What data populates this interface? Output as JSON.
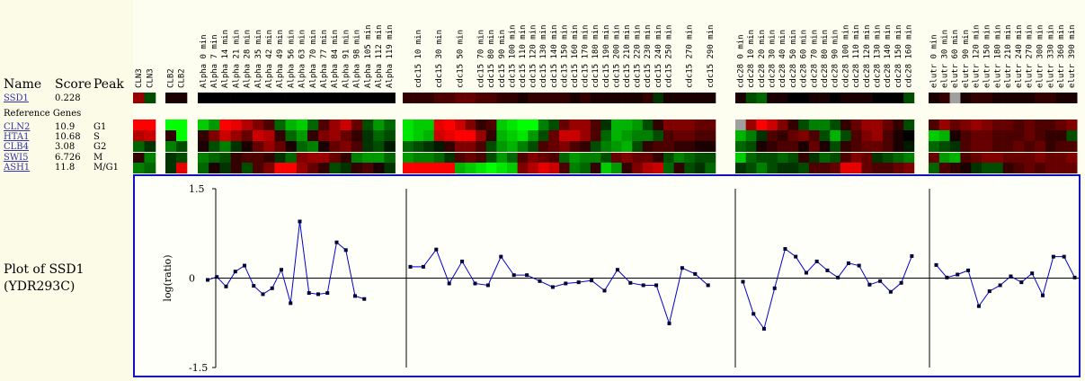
{
  "header": {
    "name": "Name",
    "score": "Score",
    "peak": "Peak"
  },
  "query_gene": {
    "name": "SSD1",
    "score": "0.228"
  },
  "reference_label": "Reference Genes",
  "reference_genes": [
    {
      "name": "CLN2",
      "score": "10.9",
      "peak": "G1"
    },
    {
      "name": "HTA1",
      "score": "10.68",
      "peak": "S"
    },
    {
      "name": "CLB4",
      "score": "3.08",
      "peak": "G2"
    },
    {
      "name": "SWI5",
      "score": "6.726",
      "peak": "M"
    },
    {
      "name": "ASH1",
      "score": "11.8",
      "peak": "M/G1"
    }
  ],
  "plot_title_line1": "Plot of SSD1",
  "plot_title_line2": "(YDR293C)",
  "colors": {
    "up": "#ff0000",
    "down": "#00ff00",
    "missing": "#a0a0a0",
    "plot_border": "#1010c0",
    "line": "#0000cc",
    "marker": "#000033"
  },
  "column_groups": [
    {
      "id": "cln3",
      "labels": [
        "CLN3",
        "CLN3"
      ]
    },
    {
      "id": "clb2",
      "labels": [
        "CLB2",
        "CLB2"
      ]
    },
    {
      "id": "alpha",
      "labels": [
        "Alpha  0 min",
        "Alpha  7 min",
        "Alpha 14 min",
        "Alpha 21 min",
        "Alpha 28 min",
        "Alpha 35 min",
        "Alpha 42 min",
        "Alpha 49 min",
        "Alpha 56 min",
        "Alpha 63 min",
        "Alpha 70 min",
        "Alpha 77 min",
        "Alpha 84 min",
        "Alpha 91 min",
        "Alpha 98 min",
        "Alpha 105 min",
        "Alpha 112 min",
        "Alpha 119 min"
      ]
    },
    {
      "id": "cdc15",
      "labels": [
        "",
        "cdc15  10 min",
        "",
        "cdc15  30 min",
        "",
        "cdc15  50 min",
        "",
        "cdc15  70 min",
        "cdc15  80 min",
        "cdc15  90 min",
        "cdc15 100 min",
        "cdc15 110 min",
        "cdc15 120 min",
        "cdc15 130 min",
        "cdc15 140 min",
        "cdc15 150 min",
        "cdc15 160 min",
        "cdc15 170 min",
        "cdc15 180 min",
        "cdc15 190 min",
        "cdc15 200 min",
        "cdc15 210 min",
        "cdc15 220 min",
        "cdc15 230 min",
        "cdc15 240 min",
        "cdc15 250 min",
        "",
        "cdc15 270 min",
        "",
        "cdc15 290 min"
      ]
    },
    {
      "id": "cdc28",
      "labels": [
        "cdc28   0 min",
        "cdc28  10 min",
        "cdc28  20 min",
        "cdc28  30 min",
        "cdc28  40 min",
        "cdc28  50 min",
        "cdc28  60 min",
        "cdc28  70 min",
        "cdc28  80 min",
        "cdc28  90 min",
        "cdc28 100 min",
        "cdc28 110 min",
        "cdc28 120 min",
        "cdc28 130 min",
        "cdc28 140 min",
        "cdc28 150 min",
        "cdc28 160 min"
      ]
    },
    {
      "id": "elutr",
      "labels": [
        "elutr   0 min",
        "elutr  30 min",
        "elutr  60 min",
        "elutr  90 min",
        "elutr 120 min",
        "elutr 150 min",
        "elutr 180 min",
        "elutr 210 min",
        "elutr 240 min",
        "elutr 270 min",
        "elutr 300 min",
        "elutr 330 min",
        "elutr 360 min",
        "elutr 390 min"
      ]
    }
  ],
  "chart_data": {
    "type": "line",
    "title": "Plot of SSD1 (YDR293C)",
    "ylabel": "log(ratio)",
    "ylim": [
      -1.5,
      1.5
    ],
    "yticks": [
      "1.5",
      "0",
      "-1.5"
    ],
    "series": [
      {
        "name": "Alpha",
        "values": [
          -0.03,
          0.02,
          -0.14,
          0.11,
          0.21,
          -0.13,
          -0.27,
          -0.17,
          0.14,
          -0.42,
          0.95,
          -0.25,
          -0.27,
          -0.25,
          0.6,
          0.47,
          -0.3,
          -0.35
        ]
      },
      {
        "name": "cdc15",
        "values": [
          0.19,
          0.19,
          0.48,
          -0.09,
          0.28,
          -0.09,
          -0.12,
          0.36,
          0.05,
          0.05,
          -0.05,
          -0.15,
          -0.09,
          -0.07,
          -0.04,
          -0.21,
          0.14,
          -0.08,
          -0.12,
          -0.12,
          -0.76,
          0.17,
          0.07,
          -0.12
        ]
      },
      {
        "name": "cdc28",
        "values": [
          -0.06,
          -0.6,
          -0.85,
          -0.17,
          0.49,
          0.36,
          0.09,
          0.28,
          0.13,
          0.01,
          0.25,
          0.21,
          -0.11,
          -0.05,
          -0.23,
          -0.08,
          0.37
        ]
      },
      {
        "name": "elutr",
        "values": [
          0.22,
          0.01,
          0.06,
          0.13,
          -0.47,
          -0.22,
          -0.12,
          0.03,
          -0.07,
          0.08,
          -0.29,
          0.36,
          0.36,
          0.01
        ]
      }
    ]
  },
  "heatmap": {
    "rows": [
      "SSD1",
      "CLN2",
      "HTA1",
      "CLB4",
      "SWI5",
      "ASH1"
    ],
    "values": [
      [
        [
          0.6,
          -0.3
        ],
        [
          0.1,
          0.1
        ],
        [
          0,
          0,
          0,
          0,
          0,
          0,
          0,
          0,
          0,
          0,
          0,
          0,
          0,
          0,
          0,
          0,
          0,
          0
        ],
        [
          0.2,
          0.2,
          0.2,
          0.3,
          0.3,
          0.4,
          0.4,
          0.3,
          0.3,
          0.2,
          0.2,
          0.1,
          0.2,
          0.2,
          0.2,
          0.2,
          0.1,
          0.2,
          0.1,
          0.1,
          0.1,
          0.1,
          0.1,
          0.2,
          -0.2,
          0.1,
          0.1,
          0.1,
          0.1,
          0.1
        ],
        [
          0.1,
          -0.3,
          -0.4,
          0.1,
          0.1,
          0,
          0,
          0.1,
          0.1,
          0,
          0.1,
          0.1,
          0.1,
          0,
          0,
          0,
          -0.3
        ],
        [
          0.1,
          0.2,
          null,
          0.1,
          0.2,
          0.2,
          0.1,
          0.1,
          0.1,
          0.1,
          0.2,
          0.2,
          0.1,
          0.1
        ]
      ],
      [
        [
          1,
          1
        ],
        [
          -1,
          -1
        ],
        [
          -0.8,
          -0.6,
          1,
          0.9,
          0.7,
          0.5,
          0.3,
          -0.4,
          -0.7,
          -0.8,
          -0.4,
          0.3,
          0.6,
          0.8,
          0.4,
          -0.3,
          -0.6,
          -0.4
        ],
        [
          -0.9,
          -0.8,
          -0.8,
          0.9,
          1,
          0.8,
          0.5,
          0.2,
          0.3,
          -0.8,
          -0.9,
          -1,
          -1,
          -0.5,
          -0.3,
          0.4,
          0.6,
          0.6,
          0.3,
          -0.2,
          -0.7,
          -0.7,
          -0.6,
          -0.3,
          0.2,
          0.5,
          0.5,
          0.5,
          0.4,
          0.4
        ],
        [
          null,
          0.6,
          1,
          0.8,
          0.5,
          0.2,
          -0.3,
          -0.5,
          -0.5,
          -0.3,
          0.2,
          0.4,
          0.6,
          0.6,
          0.4,
          0.2,
          -0.3
        ],
        [
          0.3,
          0.6,
          0.4,
          0.5,
          0.6,
          0.5,
          0.4,
          0.4,
          0.3,
          0.4,
          0.3,
          0.3,
          0.4,
          0.5
        ]
      ],
      [
        [
          0.7,
          0.8
        ],
        [
          0.2,
          -1
        ],
        [
          0.2,
          0.5,
          0.8,
          0.6,
          0.4,
          0.8,
          0.7,
          0.2,
          -0.4,
          -0.6,
          0.2,
          0.5,
          0.6,
          0.4,
          0.2,
          -0.2,
          -0.4,
          -0.3
        ],
        [
          -0.9,
          -0.8,
          -0.7,
          0.8,
          0.9,
          1,
          1,
          0.6,
          0.2,
          -0.7,
          -0.8,
          -0.9,
          -0.6,
          -0.3,
          0.4,
          0.8,
          0.8,
          0.6,
          0.3,
          -0.4,
          -0.7,
          -0.6,
          -0.5,
          -0.5,
          -0.3,
          0.3,
          0.4,
          0.4,
          0.3,
          0.3
        ],
        [
          -0.7,
          -0.5,
          -0.2,
          0.3,
          0.2,
          0.4,
          0.5,
          0.3,
          -0.3,
          -0.7,
          -0.3,
          0.3,
          0.5,
          0.6,
          0.3,
          0.1,
          0
        ],
        [
          -0.8,
          -0.7,
          0.1,
          0.3,
          0.4,
          0.4,
          0.3,
          0.3,
          0.3,
          0.4,
          0.3,
          0.2,
          0.2,
          -0.3
        ]
      ],
      [
        [
          -0.4,
          -0.2
        ],
        [
          -0.5,
          -0.3
        ],
        [
          0.1,
          -0.3,
          -0.5,
          -0.2,
          0.1,
          0.4,
          0.6,
          0.4,
          0.1,
          -0.4,
          -0.5,
          0.1,
          0.4,
          0.5,
          0.3,
          -0.2,
          -0.3,
          -0.1
        ],
        [
          -0.4,
          -0.3,
          -0.2,
          -0.1,
          0.2,
          0.5,
          0.5,
          0.3,
          -0.3,
          -0.6,
          -0.7,
          -0.5,
          -0.3,
          0.3,
          0.4,
          0.5,
          0.3,
          0.2,
          -0.3,
          -0.5,
          -0.6,
          -0.7,
          -0.3,
          0.2,
          0.3,
          0.3,
          0.2,
          0.2,
          0.1,
          0.1
        ],
        [
          -0.4,
          -0.3,
          0.1,
          0.2,
          0.3,
          0.3,
          0.1,
          0.4,
          0.1,
          -0.3,
          0.2,
          0.3,
          0.4,
          0.4,
          0.3,
          0.1,
          -0.1
        ],
        [
          -0.4,
          -0.3,
          -0.2,
          0.3,
          0.4,
          0.4,
          0.3,
          0.3,
          0.4,
          0.3,
          0.4,
          0.2,
          0.3,
          0.3
        ]
      ],
      [
        [
          0.2,
          -0.5
        ],
        [
          -0.2,
          -0.3
        ],
        [
          -0.5,
          -0.4,
          -0.3,
          0.2,
          0.3,
          0.3,
          0.2,
          -0.2,
          -0.4,
          0.5,
          0.6,
          0.6,
          0.4,
          0.2,
          -0.5,
          -0.6,
          -0.6,
          -0.4
        ],
        [
          -0.6,
          -0.5,
          -0.5,
          -0.4,
          -0.2,
          0.3,
          0.4,
          0.3,
          -0.3,
          -0.6,
          -0.4,
          0.3,
          0.5,
          0.4,
          0.3,
          -0.4,
          -0.6,
          -0.5,
          -0.5,
          -0.3,
          0.4,
          0.5,
          0.4,
          0.4,
          0.2,
          -0.3,
          -0.5,
          -0.4,
          -0.3,
          -0.3
        ],
        [
          -0.8,
          -0.4,
          -0.3,
          -0.3,
          -0.4,
          -0.3,
          0.2,
          -0.2,
          -0.4,
          -0.3,
          0.3,
          0.5,
          0.4,
          -0.2,
          -0.3,
          -0.4,
          -0.5
        ],
        [
          0.4,
          -0.6,
          -0.7,
          0.3,
          0.4,
          0.5,
          0.5,
          0.4,
          0.4,
          0.4,
          0.5,
          0.4,
          0.4,
          0.5
        ]
      ],
      [
        [
          -0.5,
          -0.4
        ],
        [
          -0.2,
          0.9
        ],
        [
          -0.4,
          0.1,
          -0.2,
          0.2,
          -0.3,
          0.3,
          0.5,
          1,
          1,
          0.6,
          0.4,
          0.2,
          -0.3,
          -0.2,
          0.2,
          0.3,
          0.1,
          -0.2
        ],
        [
          1,
          1,
          1,
          1,
          1,
          -0.7,
          -0.8,
          -0.9,
          -1,
          -0.9,
          -0.8,
          0.5,
          0.7,
          0.9,
          0.8,
          0.3,
          -0.5,
          -0.4,
          0.2,
          -0.8,
          -0.6,
          0.2,
          0.5,
          0.7,
          0.8,
          -0.4,
          0.2,
          -0.3,
          -0.2,
          -0.4
        ],
        [
          -0.2,
          -0.3,
          -0.5,
          -0.3,
          -0.2,
          -0.2,
          -0.3,
          0.3,
          0.3,
          0.4,
          0.9,
          0.9,
          0.4,
          0.3,
          0.3,
          0.4,
          0.5
        ],
        [
          -0.4,
          0.3,
          0.2,
          0.1,
          -0.2,
          -0.3,
          -0.3,
          0.2,
          0.3,
          0.4,
          0.3,
          0.4,
          0.4,
          0.4
        ]
      ]
    ]
  }
}
